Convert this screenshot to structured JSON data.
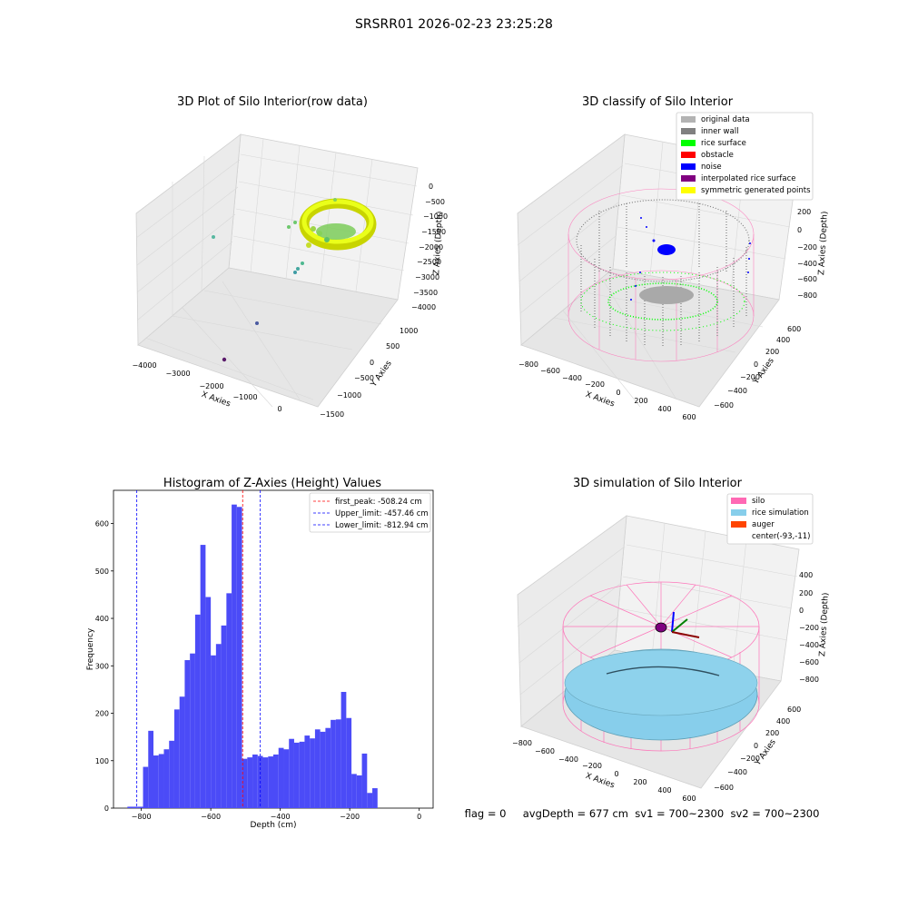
{
  "figure_title": "SRSRR01 2026-02-23 23:25:28",
  "status_text": "flag = 0     avgDepth = 677 cm  sv1 = 700~2300  sv2 = 700~2300",
  "colors": {
    "silo": "#ff69b4",
    "rice_simulation": "#87ceeb",
    "auger": "#ff4500",
    "original_data": "#b3b3b3",
    "inner_wall": "#808080",
    "rice_surface": "#00ff00",
    "obstacle": "#ff0000",
    "noise": "#0000ff",
    "interpolated_rice_surface": "#800080",
    "symmetric_generated_points": "#ffff00",
    "histogram_bar": "#4b4bf7",
    "first_peak_line": "#ff0000",
    "limit_line": "#0000ff"
  },
  "panels": {
    "raw": {
      "title": "3D Plot of Silo Interior(row data)",
      "xlabel": "X Axies",
      "ylabel": "Y Axies",
      "zlabel": "Z Axies (Depth)",
      "xticks": [
        "−4000",
        "−3000",
        "−2000",
        "−1000",
        "0"
      ],
      "yticks": [
        "−1500",
        "−1000",
        "−500",
        "0",
        "500",
        "1000"
      ],
      "zticks": [
        "0",
        "−500",
        "−1000",
        "−1500",
        "−2000",
        "−2500",
        "−3000",
        "−3500",
        "−4000"
      ]
    },
    "classify": {
      "title": "3D classify of Silo Interior",
      "xlabel": "X Axies",
      "ylabel": "Y Axies",
      "zlabel": "Z Axies (Depth)",
      "xticks": [
        "−800",
        "−600",
        "−400",
        "−200",
        "0",
        "200",
        "400",
        "600"
      ],
      "yticks": [
        "−600",
        "−400",
        "−200",
        "0",
        "200",
        "400",
        "600"
      ],
      "zticks": [
        "400",
        "200",
        "0",
        "−200",
        "−400",
        "−600",
        "−800"
      ],
      "legend": [
        "original data",
        "inner wall",
        "rice surface",
        "obstacle",
        "noise",
        "interpolated rice surface",
        "symmetric generated points"
      ]
    },
    "simulation": {
      "title": "3D simulation of Silo Interior",
      "xlabel": "X Axies",
      "ylabel": "Y Axies",
      "zlabel": "Z Axies (Depth)",
      "xticks": [
        "−800",
        "−600",
        "−400",
        "−200",
        "0",
        "200",
        "400",
        "600"
      ],
      "yticks": [
        "−600",
        "−400",
        "−200",
        "0",
        "200",
        "400",
        "600"
      ],
      "zticks": [
        "400",
        "200",
        "0",
        "−200",
        "−400",
        "−600",
        "−800"
      ],
      "legend": [
        "silo",
        "rice simulation",
        "auger",
        "center(-93,-11)"
      ]
    }
  },
  "chart_data": {
    "type": "bar",
    "title": "Histogram of Z-Axies (Height) Values",
    "xlabel": "Depth (cm)",
    "ylabel": "Frequency",
    "xlim": [
      -880,
      40
    ],
    "ylim": [
      0,
      670
    ],
    "xticks": [
      -800,
      -600,
      -400,
      -200,
      0
    ],
    "yticks": [
      0,
      100,
      200,
      300,
      400,
      500,
      600
    ],
    "bin_width": 15,
    "bins": [
      [
        -840,
        3
      ],
      [
        -825,
        3
      ],
      [
        -810,
        3
      ],
      [
        -795,
        87
      ],
      [
        -780,
        163
      ],
      [
        -765,
        111
      ],
      [
        -750,
        114
      ],
      [
        -735,
        124
      ],
      [
        -720,
        142
      ],
      [
        -705,
        208
      ],
      [
        -690,
        235
      ],
      [
        -675,
        312
      ],
      [
        -660,
        326
      ],
      [
        -645,
        408
      ],
      [
        -630,
        555
      ],
      [
        -615,
        445
      ],
      [
        -600,
        322
      ],
      [
        -585,
        346
      ],
      [
        -570,
        385
      ],
      [
        -555,
        453
      ],
      [
        -540,
        640
      ],
      [
        -525,
        635
      ],
      [
        -510,
        104
      ],
      [
        -495,
        107
      ],
      [
        -480,
        113
      ],
      [
        -465,
        110
      ],
      [
        -450,
        107
      ],
      [
        -435,
        109
      ],
      [
        -420,
        113
      ],
      [
        -405,
        127
      ],
      [
        -390,
        124
      ],
      [
        -375,
        146
      ],
      [
        -360,
        138
      ],
      [
        -345,
        140
      ],
      [
        -330,
        153
      ],
      [
        -315,
        147
      ],
      [
        -300,
        166
      ],
      [
        -285,
        161
      ],
      [
        -270,
        169
      ],
      [
        -255,
        186
      ],
      [
        -240,
        187
      ],
      [
        -225,
        245
      ],
      [
        -210,
        190
      ],
      [
        -195,
        72
      ],
      [
        -180,
        69
      ],
      [
        -165,
        115
      ],
      [
        -150,
        32
      ],
      [
        -135,
        42
      ]
    ],
    "vlines": [
      {
        "name": "first_peak: -508.24 cm",
        "x": -508.24,
        "color": "#ff0000"
      },
      {
        "name": "Upper_limit: -457.46 cm",
        "x": -457.46,
        "color": "#0000ff"
      },
      {
        "name": "Lower_limit: -812.94 cm",
        "x": -812.94,
        "color": "#0000ff"
      }
    ]
  }
}
